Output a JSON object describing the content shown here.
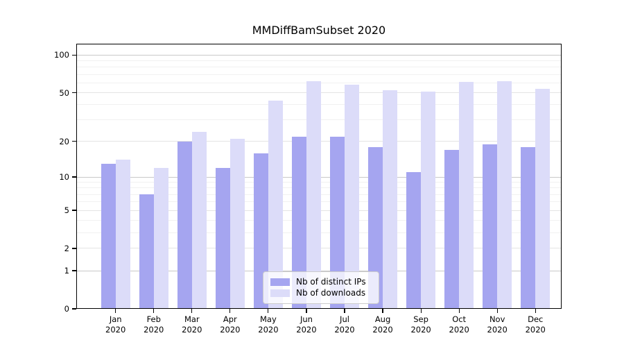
{
  "title": "MMDiffBamSubset 2020",
  "legend": {
    "items": [
      {
        "label": "Nb of distinct IPs",
        "color": "#a5a5f0"
      },
      {
        "label": "Nb of downloads",
        "color": "#dcdcf9"
      }
    ]
  },
  "chart_data": {
    "type": "bar",
    "title": "MMDiffBamSubset 2020",
    "categories": [
      "Jan",
      "Feb",
      "Mar",
      "Apr",
      "May",
      "Jun",
      "Jul",
      "Aug",
      "Sep",
      "Oct",
      "Nov",
      "Dec"
    ],
    "category_year": "2020",
    "series": [
      {
        "name": "Nb of distinct IPs",
        "color": "#a5a5f0",
        "values": [
          13,
          7,
          20,
          12,
          16,
          22,
          22,
          18,
          11,
          17,
          19,
          18
        ]
      },
      {
        "name": "Nb of downloads",
        "color": "#dcdcf9",
        "values": [
          14,
          12,
          24,
          21,
          43,
          62,
          58,
          52,
          51,
          61,
          62,
          54
        ]
      }
    ],
    "xlabel": "",
    "ylabel": "",
    "yscale": "log1p",
    "ylim": [
      0,
      123.2
    ],
    "yticks": [
      0,
      1,
      2,
      5,
      10,
      20,
      50,
      100
    ],
    "yticks_strong": [
      1,
      10,
      100
    ],
    "yticks_minor": [
      3,
      4,
      6,
      7,
      8,
      9,
      30,
      40,
      60,
      70,
      80,
      90
    ],
    "grid": true,
    "legend_position": "lower-center-inside"
  },
  "grid_colors": {
    "strong": "#c8c8c8",
    "labeled": "#e4e4e4",
    "minor": "#f1f1f1"
  }
}
